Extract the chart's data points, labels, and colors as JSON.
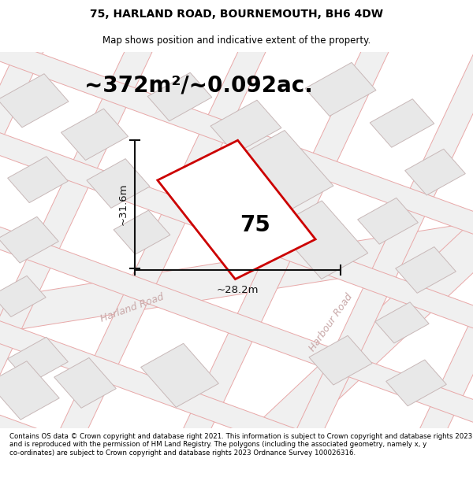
{
  "title_line1": "75, HARLAND ROAD, BOURNEMOUTH, BH6 4DW",
  "title_line2": "Map shows position and indicative extent of the property.",
  "area_text": "~372m²/~0.092ac.",
  "property_number": "75",
  "dim_width": "~28.2m",
  "dim_height": "~31.6m",
  "road1_label": "Harland Road",
  "road2_label": "Harbour Road",
  "footer_text": "Contains OS data © Crown copyright and database right 2021. This information is subject to Crown copyright and database rights 2023 and is reproduced with the permission of HM Land Registry. The polygons (including the associated geometry, namely x, y co-ordinates) are subject to Crown copyright and database rights 2023 Ordnance Survey 100026316.",
  "map_bg": "#ffffff",
  "property_fill": "#ffffff",
  "property_edge": "#cc0000",
  "road_fill": "#f0f0f0",
  "road_edge": "#e8a8a8",
  "building_fill": "#e8e8e8",
  "building_edge": "#c8b8b8",
  "dim_color": "#111111",
  "area_fontsize": 20,
  "figsize": [
    6.0,
    6.25
  ],
  "dpi": 100
}
